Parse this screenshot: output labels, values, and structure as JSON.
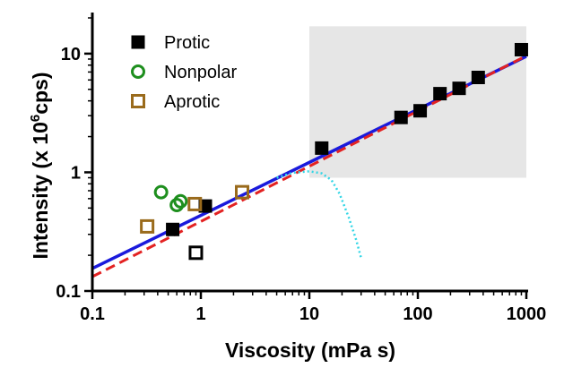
{
  "chart_data": {
    "type": "scatter",
    "xlabel": "Viscosity (mPa s)",
    "ylabel": {
      "prefix": "Intensity (x 10",
      "superscript": "6",
      "suffix": "cps)"
    },
    "x_scale": "log",
    "y_scale": "log",
    "xlim": [
      0.1,
      1000
    ],
    "ylim": [
      0.1,
      20
    ],
    "x_ticks": [
      0.1,
      1,
      10,
      100,
      1000
    ],
    "x_tick_labels": [
      "0.1",
      "1",
      "10",
      "100",
      "1000"
    ],
    "y_ticks": [
      0.1,
      1,
      10
    ],
    "y_tick_labels": [
      "0.1",
      "1",
      "10"
    ],
    "grid": false,
    "legend_position": "top-left",
    "shaded_region": {
      "x": [
        10,
        1000
      ],
      "y": [
        0.9,
        17
      ],
      "color": "#e6e6e6"
    },
    "series": [
      {
        "name": "Protic",
        "marker": "filled-square",
        "color": "#000000",
        "points": [
          [
            0.55,
            0.33
          ],
          [
            1.1,
            0.52
          ],
          [
            13,
            1.6
          ],
          [
            70,
            2.9
          ],
          [
            105,
            3.3
          ],
          [
            160,
            4.6
          ],
          [
            240,
            5.1
          ],
          [
            360,
            6.3
          ],
          [
            900,
            10.8
          ]
        ]
      },
      {
        "name": "Nonpolar",
        "marker": "open-circle",
        "color": "#1e8f1e",
        "points": [
          [
            0.43,
            0.68
          ],
          [
            0.6,
            0.53
          ],
          [
            0.65,
            0.57
          ]
        ]
      },
      {
        "name": "Aprotic",
        "marker": "open-square",
        "color": "#9a6b1c",
        "points": [
          [
            0.32,
            0.35
          ],
          [
            0.88,
            0.54
          ],
          [
            2.4,
            0.68
          ]
        ]
      },
      {
        "name": "",
        "marker": "open-square",
        "color": "#000000",
        "points": [
          [
            0.9,
            0.21
          ]
        ]
      }
    ],
    "lines": [
      {
        "style": "solid",
        "color": "#1a1adc",
        "points": [
          [
            0.1,
            0.155
          ],
          [
            1000,
            9.5
          ]
        ]
      },
      {
        "style": "dashed",
        "color": "#e32222",
        "points": [
          [
            0.1,
            0.132
          ],
          [
            1000,
            9.6
          ]
        ]
      },
      {
        "style": "dotted",
        "color": "#33d6e6",
        "points": [
          [
            5,
            0.9
          ],
          [
            7,
            0.99
          ],
          [
            10,
            1.02
          ],
          [
            13,
            0.98
          ],
          [
            16,
            0.86
          ],
          [
            19,
            0.66
          ],
          [
            23,
            0.42
          ],
          [
            27,
            0.27
          ],
          [
            30,
            0.19
          ]
        ]
      }
    ]
  }
}
